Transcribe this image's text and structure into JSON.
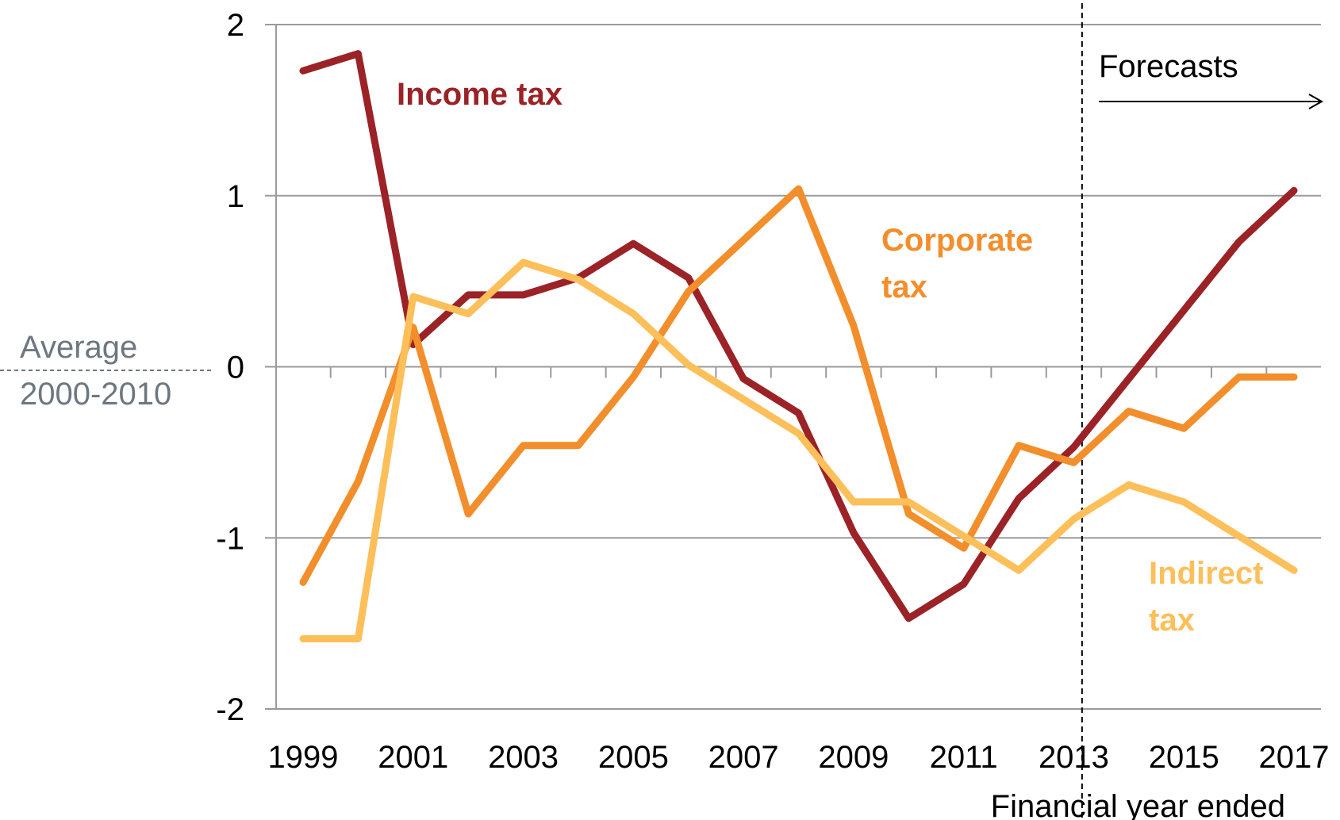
{
  "chart_data": {
    "type": "line",
    "xlabel": "Financial year ended",
    "ylabel": "",
    "ylim": [
      -2,
      2
    ],
    "xlim": [
      1999,
      2017
    ],
    "yticks": [
      2,
      1,
      0,
      -1,
      -2
    ],
    "ytick_labels": [
      "2",
      "1",
      "0",
      "-1",
      "-2"
    ],
    "xticks": [
      1999,
      2001,
      2003,
      2005,
      2007,
      2009,
      2011,
      2013,
      2015,
      2017
    ],
    "xtick_labels": [
      "1999",
      "2001",
      "2003",
      "2005",
      "2007",
      "2009",
      "2011",
      "2013",
      "2015",
      "2017"
    ],
    "grid": "horizontal",
    "forecast_label": "Forecasts",
    "forecast_start": 2013.15,
    "average_label_line1": "Average",
    "average_label_line2": "2000-2010",
    "x": [
      1999,
      2000,
      2001,
      2002,
      2003,
      2004,
      2005,
      2006,
      2007,
      2008,
      2009,
      2010,
      2011,
      2012,
      2013,
      2014,
      2015,
      2016,
      2017
    ],
    "series": [
      {
        "name": "Income tax",
        "label_lines": [
          "Income tax"
        ],
        "color": "#9b2226",
        "values": [
          1.73,
          1.83,
          0.13,
          0.42,
          0.42,
          0.52,
          0.72,
          0.52,
          -0.07,
          -0.27,
          -0.97,
          -1.47,
          -1.27,
          -0.77,
          -0.47,
          -0.07,
          0.33,
          0.73,
          1.03
        ]
      },
      {
        "name": "Corporate tax",
        "label_lines": [
          "Corporate",
          "tax"
        ],
        "color": "#f28e2b",
        "values": [
          -1.26,
          -0.67,
          0.23,
          -0.86,
          -0.46,
          -0.46,
          -0.06,
          0.44,
          0.74,
          1.04,
          0.24,
          -0.86,
          -1.06,
          -0.46,
          -0.56,
          -0.26,
          -0.36,
          -0.06,
          -0.06
        ]
      },
      {
        "name": "Indirect tax",
        "label_lines": [
          "Indirect",
          "tax"
        ],
        "color": "#fdbf5a",
        "values": [
          -1.59,
          -1.59,
          0.41,
          0.31,
          0.61,
          0.51,
          0.31,
          0.01,
          -0.19,
          -0.39,
          -0.79,
          -0.79,
          -0.99,
          -1.19,
          -0.89,
          -0.69,
          -0.79,
          -0.99,
          -1.19
        ]
      }
    ]
  },
  "colors": {
    "grid": "#9a9a9a",
    "axis": "#9a9a9a",
    "average_dash": "#6d7780",
    "forecast_line": "#000000"
  }
}
